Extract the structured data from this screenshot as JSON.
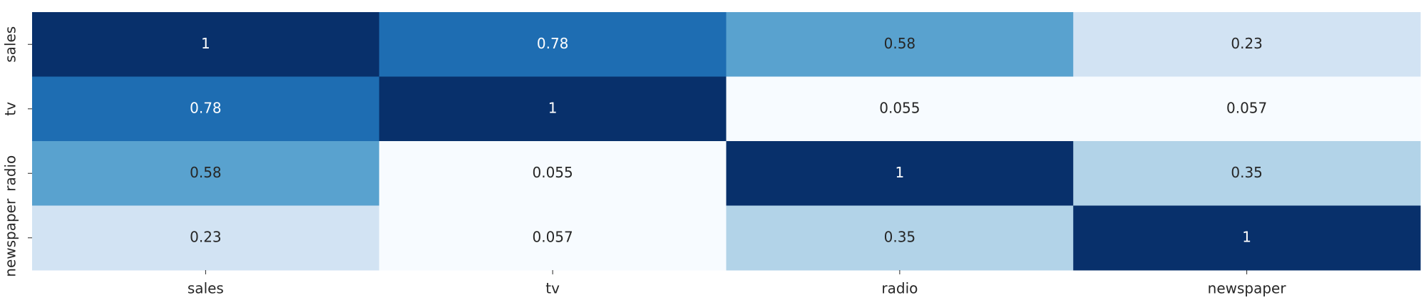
{
  "chart_data": {
    "type": "heatmap",
    "colormap": "Blues",
    "x_categories": [
      "sales",
      "tv",
      "radio",
      "newspaper"
    ],
    "y_categories": [
      "sales",
      "tv",
      "radio",
      "newspaper"
    ],
    "values": [
      [
        1,
        0.78,
        0.58,
        0.23
      ],
      [
        0.78,
        1,
        0.055,
        0.057
      ],
      [
        0.58,
        0.055,
        1,
        0.35
      ],
      [
        0.23,
        0.057,
        0.35,
        1
      ]
    ]
  }
}
